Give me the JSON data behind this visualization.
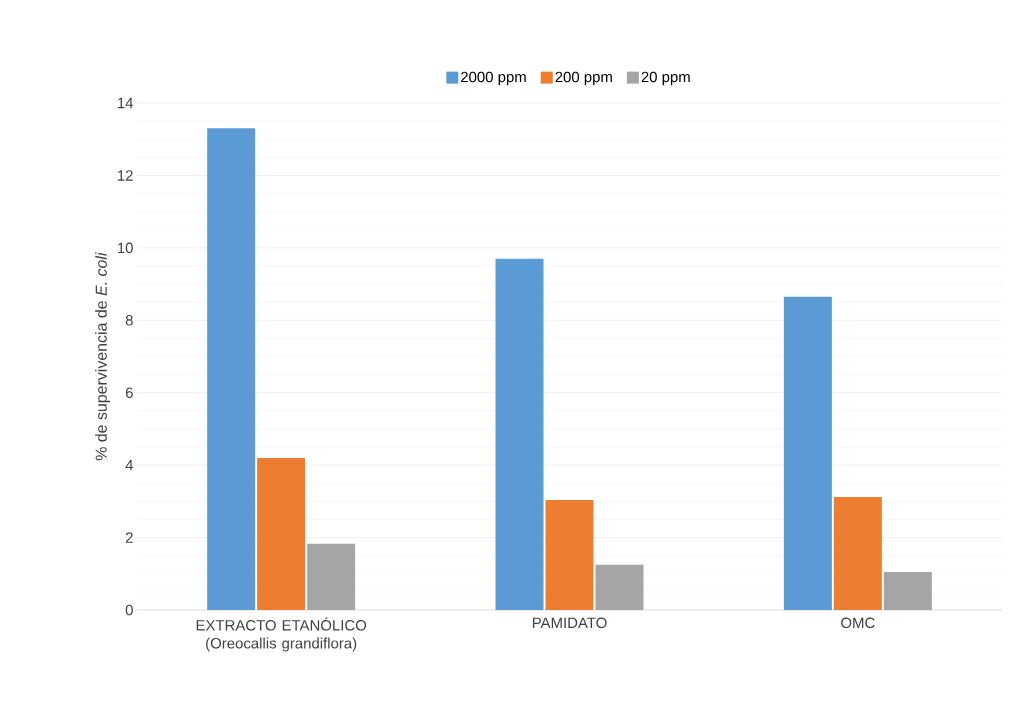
{
  "chart_data": {
    "type": "bar",
    "ylabel": "% de supervivencia de *E. coli*",
    "categories": [
      "EXTRACTO ETANÓLICO (Oreocallis grandiflora)",
      "PAMIDATO",
      "OMC"
    ],
    "series": [
      {
        "name": "2000 ppm",
        "color": "#5b9bd5",
        "values": [
          13.3,
          9.7,
          8.65
        ]
      },
      {
        "name": "200 ppm",
        "color": "#ed7d31",
        "values": [
          4.2,
          3.04,
          3.12
        ]
      },
      {
        "name": "20 ppm",
        "color": "#a5a5a5",
        "values": [
          1.83,
          1.25,
          1.05
        ]
      }
    ],
    "ylim": [
      0,
      14
    ],
    "yticks": [
      0,
      2,
      4,
      6,
      8,
      10,
      12,
      14
    ],
    "grid": "y",
    "legend": "top"
  }
}
